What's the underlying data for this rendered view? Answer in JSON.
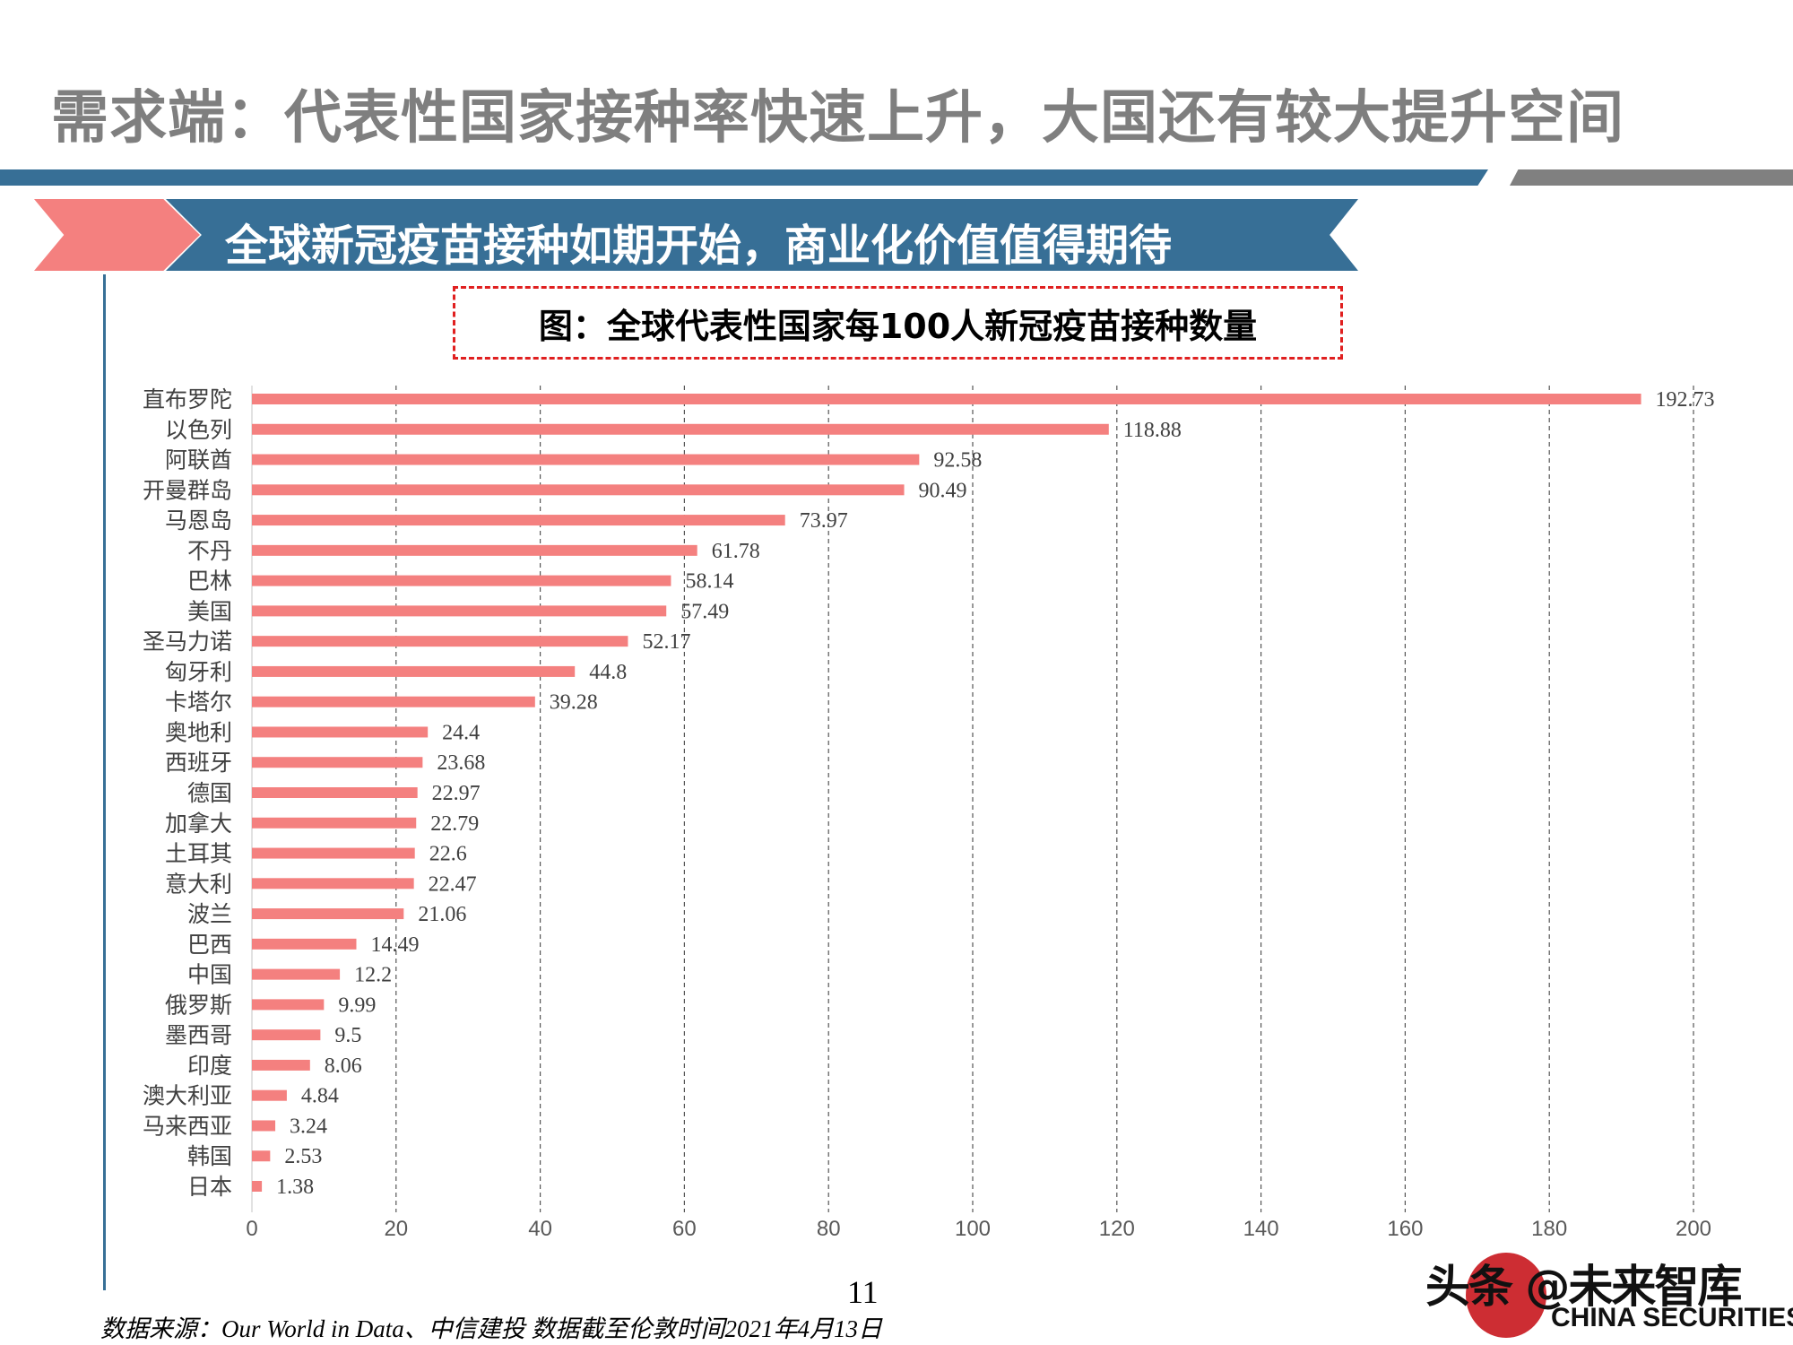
{
  "page": {
    "title": "需求端：代表性国家接种率快速上升，大国还有较大提升空间",
    "banner": "全球新冠疫苗接种如期开始，商业化价值值得期待",
    "caption": "图：全球代表性国家每100人新冠疫苗接种数量",
    "page_number": "11",
    "source": "数据来源：Our World in Data、中信建投  数据截至伦敦时间2021年4月13日",
    "watermark": "头条 @未来智库",
    "watermark_sub": "CHINA SECURITIES"
  },
  "colors": {
    "title": "#7f7f7f",
    "banner": "#376f96",
    "accent": "#f4807f",
    "bar": "#f4807f",
    "dashed_box": "#e02020"
  },
  "chart_data": {
    "type": "bar",
    "orientation": "horizontal",
    "title": "图：全球代表性国家每100人新冠疫苗接种数量",
    "categories": [
      "直布罗陀",
      "以色列",
      "阿联酋",
      "开曼群岛",
      "马恩岛",
      "不丹",
      "巴林",
      "美国",
      "圣马力诺",
      "匈牙利",
      "卡塔尔",
      "奥地利",
      "西班牙",
      "德国",
      "加拿大",
      "土耳其",
      "意大利",
      "波兰",
      "巴西",
      "中国",
      "俄罗斯",
      "墨西哥",
      "印度",
      "澳大利亚",
      "马来西亚",
      "韩国",
      "日本"
    ],
    "values": [
      192.73,
      118.88,
      92.58,
      90.49,
      73.97,
      61.78,
      58.14,
      57.49,
      52.17,
      44.8,
      39.28,
      24.4,
      23.68,
      22.97,
      22.79,
      22.6,
      22.47,
      21.06,
      14.49,
      12.2,
      9.99,
      9.5,
      8.06,
      4.84,
      3.24,
      2.53,
      1.38
    ],
    "value_labels": [
      "192.73",
      "118.88",
      "92.58",
      "90.49",
      "73.97",
      "61.78",
      "58.14",
      "57.49",
      "52.17",
      "44.8",
      "39.28",
      "24.4",
      "23.68",
      "22.97",
      "22.79",
      "22.6",
      "22.47",
      "21.06",
      "14.49",
      "12.2",
      "9.99",
      "9.5",
      "8.06",
      "4.84",
      "3.24",
      "2.53",
      "1.38"
    ],
    "xlim": [
      0,
      200
    ],
    "xticks": [
      "0",
      "20",
      "40",
      "60",
      "80",
      "100",
      "120",
      "140",
      "160",
      "180",
      "200"
    ],
    "grid": "vertical dashed",
    "legend": "none"
  }
}
